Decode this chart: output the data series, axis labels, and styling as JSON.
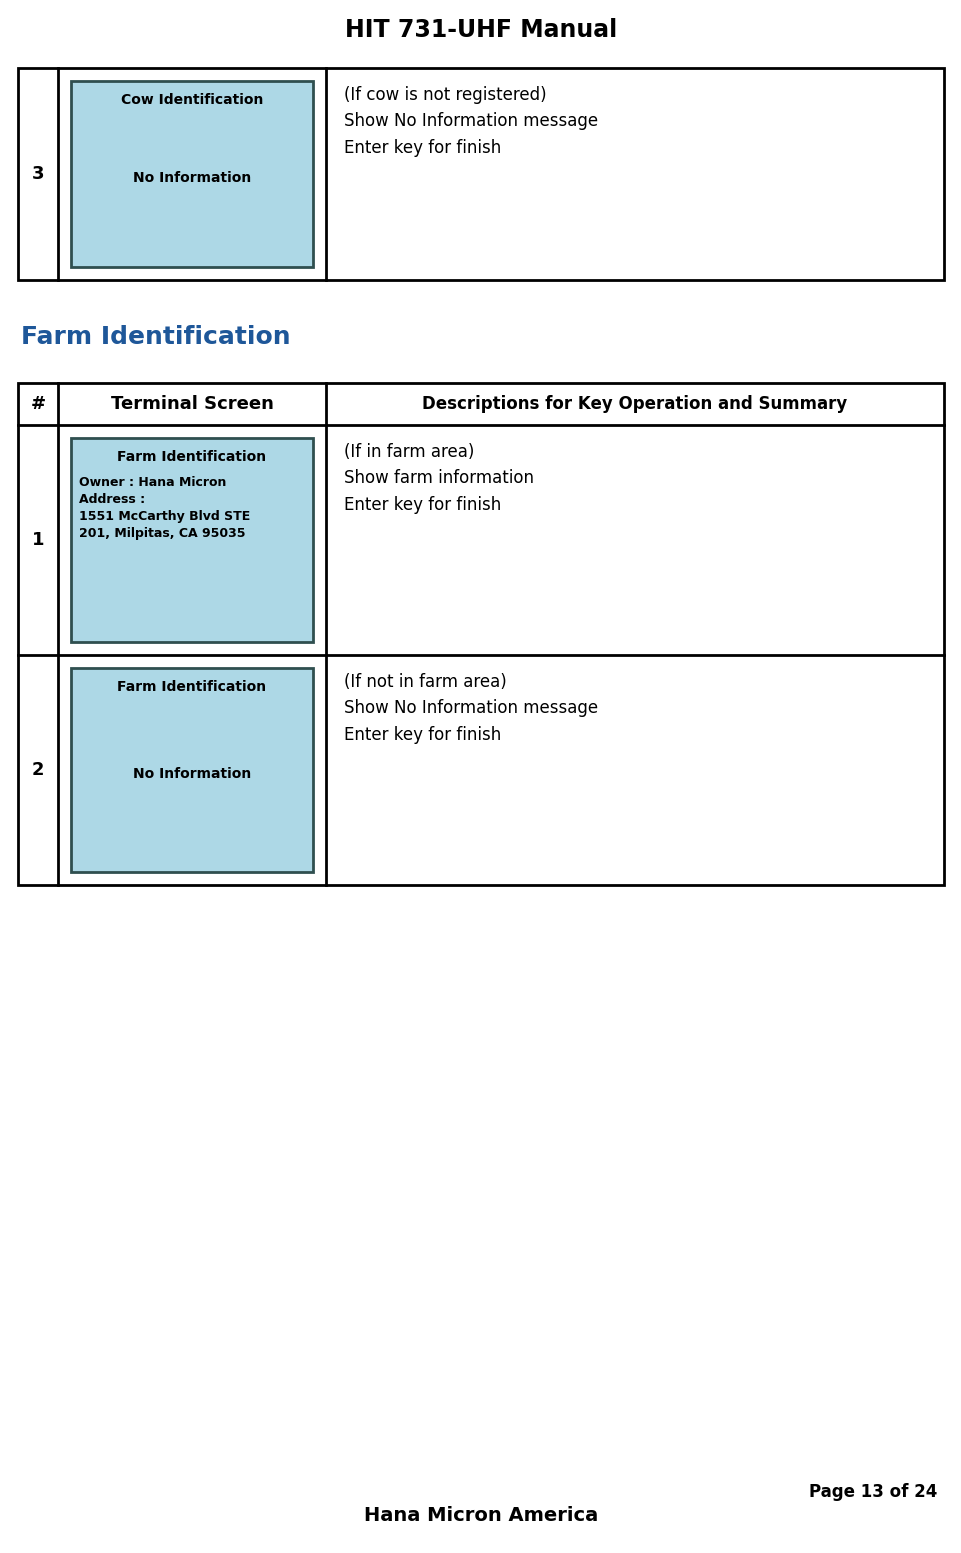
{
  "title": "HIT 731-UHF Manual",
  "title_fontsize": 17,
  "title_color": "#000000",
  "footer_company": "Hana Micron America",
  "footer_page": "Page 13 of 24",
  "bg_color": "#ffffff",
  "screen_bg": "#add8e6",
  "screen_border": "#2f4f4f",
  "section1_heading": "Farm Identification",
  "section1_heading_color": "#1e5799",
  "table1_rows": [
    {
      "num": "3",
      "screen_title": "Cow Identification",
      "screen_body": "No Information",
      "desc": "(If cow is not registered)\nShow No Information message\nEnter key for finish"
    }
  ],
  "table2_header": [
    "#",
    "Terminal Screen",
    "Descriptions for Key Operation and Summary"
  ],
  "table2_rows": [
    {
      "num": "1",
      "screen_title": "Farm Identification",
      "screen_body": "Owner : Hana Micron\nAddress :\n1551 McCarthy Blvd STE\n201, Milpitas, CA 95035",
      "desc": "(If in farm area)\nShow farm information\nEnter key for finish"
    },
    {
      "num": "2",
      "screen_title": "Farm Identification",
      "screen_body": "No Information",
      "desc": "(If not in farm area)\nShow No Information message\nEnter key for finish"
    }
  ]
}
